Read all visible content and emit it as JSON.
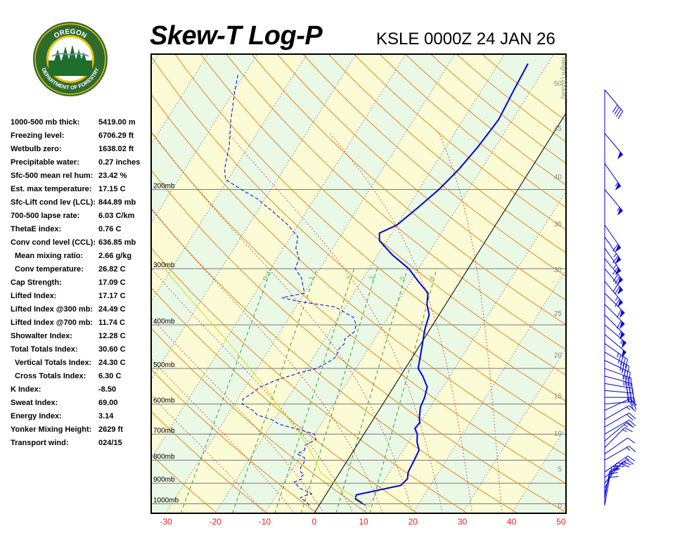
{
  "header": {
    "title": "Skew-T Log-P",
    "station": "KSLE 0000Z 24 JAN 26"
  },
  "logo": {
    "top_text": "OREGON",
    "bottom_text": "DEPARTMENT OF FORESTRY",
    "colors": {
      "ring": "#2f6b2f",
      "gold": "#e8c200",
      "green": "#1f6e2c",
      "sky": "#ffffff"
    }
  },
  "indices": [
    {
      "label": "1000-500 mb thick:",
      "value": "5419.00 m",
      "indent": false
    },
    {
      "label": "Freezing level:",
      "value": "6706.29 ft",
      "indent": false
    },
    {
      "label": "Wetbulb zero:",
      "value": "1638.02 ft",
      "indent": false
    },
    {
      "label": "Precipitable water:",
      "value": "0.27 inches",
      "indent": false
    },
    {
      "label": "Sfc-500 mean rel hum:",
      "value": "23.42 %",
      "indent": false
    },
    {
      "label": "Est. max temperature:",
      "value": "17.15 C",
      "indent": false
    },
    {
      "label": "Sfc-Lift cond lev (LCL):",
      "value": "844.89 mb",
      "indent": false
    },
    {
      "label": "700-500 lapse rate:",
      "value": "6.03 C/km",
      "indent": false
    },
    {
      "label": "ThetaE index:",
      "value": "0.76 C",
      "indent": false
    },
    {
      "label": "Conv cond level (CCL):",
      "value": "636.85 mb",
      "indent": false
    },
    {
      "label": "Mean mixing ratio:",
      "value": "2.66 g/kg",
      "indent": true
    },
    {
      "label": "Conv temperature:",
      "value": "26.82 C",
      "indent": true
    },
    {
      "label": "Cap Strength:",
      "value": "17.09 C",
      "indent": false
    },
    {
      "label": "Lifted Index:",
      "value": "17.17 C",
      "indent": false
    },
    {
      "label": "Lifted Index @300 mb:",
      "value": "24.49 C",
      "indent": false
    },
    {
      "label": "Lifted Index @700 mb:",
      "value": "11.74 C",
      "indent": false
    },
    {
      "label": "Showalter Index:",
      "value": "12.28 C",
      "indent": false
    },
    {
      "label": "Total Totals Index:",
      "value": "30.60 C",
      "indent": false
    },
    {
      "label": "Vertical Totals Index:",
      "value": "24.30 C",
      "indent": true
    },
    {
      "label": "Cross Totals Index:",
      "value": "6.30 C",
      "indent": true
    },
    {
      "label": "K Index:",
      "value": "-8.50",
      "indent": false
    },
    {
      "label": "Sweat Index:",
      "value": "69.00",
      "indent": false
    },
    {
      "label": "Energy Index:",
      "value": "3.14",
      "indent": false
    },
    {
      "label": "Yonker Mixing Height:",
      "value": "2629 ft",
      "indent": false
    },
    {
      "label": "Transport wind:",
      "value": "024/15",
      "indent": false
    }
  ],
  "chart_data": {
    "type": "line",
    "xlim": [
      -33,
      51
    ],
    "plim": [
      1050,
      100
    ],
    "temperature_ticks": [
      "-30",
      "-20",
      "-10",
      "0",
      "10",
      "20",
      "30",
      "40",
      "50"
    ],
    "pressure_levels": [
      {
        "p": 200,
        "label": "200mb"
      },
      {
        "p": 300,
        "label": "300mb"
      },
      {
        "p": 400,
        "label": "400mb"
      },
      {
        "p": 500,
        "label": "500mb"
      },
      {
        "p": 600,
        "label": "600mb"
      },
      {
        "p": 700,
        "label": "700mb"
      },
      {
        "p": 800,
        "label": "800mb"
      },
      {
        "p": 900,
        "label": "900mb"
      },
      {
        "p": 1000,
        "label": "1000mb"
      }
    ],
    "height_axis": {
      "label": "Height (1000ft)",
      "ticks": [
        {
          "p": 1008,
          "label": "0"
        },
        {
          "p": 835,
          "label": "5"
        },
        {
          "p": 697,
          "label": "10"
        },
        {
          "p": 574,
          "label": "15"
        },
        {
          "p": 466,
          "label": "20"
        },
        {
          "p": 376,
          "label": "25"
        },
        {
          "p": 301,
          "label": "30"
        },
        {
          "p": 238,
          "label": "35"
        },
        {
          "p": 187,
          "label": "40"
        },
        {
          "p": 146,
          "label": "45"
        },
        {
          "p": 116,
          "label": "50"
        }
      ]
    },
    "mixing_ratio_labels": [
      "0.4",
      "1",
      "2",
      "3",
      "5",
      "8"
    ],
    "mixing_ratios": [
      0.4,
      1,
      2,
      3,
      5,
      8
    ],
    "dry_adiabat_thetas": [
      250,
      260,
      270,
      280,
      290,
      300,
      310,
      320,
      330,
      340,
      350,
      360,
      370,
      380,
      390,
      400,
      410,
      420,
      430,
      440,
      450,
      460,
      470,
      480
    ],
    "moist_adiabat_starts": [
      -10,
      -4,
      2,
      8,
      14,
      20,
      26,
      32,
      38
    ],
    "series": [
      {
        "role": "temperature",
        "color": "#0000dd",
        "points": [
          [
            1008,
            9.5
          ],
          [
            990,
            7.8
          ],
          [
            975,
            6.5
          ],
          [
            955,
            6.2
          ],
          [
            930,
            10.5
          ],
          [
            910,
            14.0
          ],
          [
            880,
            14.5
          ],
          [
            850,
            13.8
          ],
          [
            800,
            13.5
          ],
          [
            760,
            13.2
          ],
          [
            730,
            11.8
          ],
          [
            700,
            10.8
          ],
          [
            680,
            9.6
          ],
          [
            660,
            9.8
          ],
          [
            640,
            9.0
          ],
          [
            610,
            8.0
          ],
          [
            580,
            7.6
          ],
          [
            550,
            6.8
          ],
          [
            520,
            4.5
          ],
          [
            500,
            2.6
          ],
          [
            470,
            1.5
          ],
          [
            440,
            0.3
          ],
          [
            410,
            -1.0
          ],
          [
            380,
            -2.0
          ],
          [
            360,
            -3.8
          ],
          [
            340,
            -5.0
          ],
          [
            320,
            -8.5
          ],
          [
            300,
            -12.0
          ],
          [
            280,
            -17.0
          ],
          [
            260,
            -21.5
          ],
          [
            250,
            -22.5
          ],
          [
            240,
            -20.0
          ],
          [
            220,
            -18.0
          ],
          [
            200,
            -16.0
          ],
          [
            180,
            -14.5
          ],
          [
            160,
            -13.5
          ],
          [
            140,
            -12.8
          ],
          [
            120,
            -13.5
          ],
          [
            105,
            -14.0
          ]
        ]
      },
      {
        "role": "dewpoint",
        "color": "#0000dd",
        "points": [
          [
            1008,
            -2.0
          ],
          [
            990,
            -3.0
          ],
          [
            970,
            -4.8
          ],
          [
            960,
            -4.2
          ],
          [
            950,
            -3.0
          ],
          [
            940,
            -4.0
          ],
          [
            925,
            -6.0
          ],
          [
            910,
            -7.0
          ],
          [
            895,
            -8.0
          ],
          [
            880,
            -6.8
          ],
          [
            870,
            -7.3
          ],
          [
            860,
            -7.0
          ],
          [
            850,
            -8.0
          ],
          [
            830,
            -8.6
          ],
          [
            810,
            -8.5
          ],
          [
            790,
            -9.0
          ],
          [
            775,
            -11.0
          ],
          [
            760,
            -10.0
          ],
          [
            740,
            -10.5
          ],
          [
            720,
            -9.0
          ],
          [
            700,
            -10.0
          ],
          [
            685,
            -13.5
          ],
          [
            665,
            -18.5
          ],
          [
            650,
            -20.5
          ],
          [
            635,
            -24.0
          ],
          [
            620,
            -25.5
          ],
          [
            600,
            -28.5
          ],
          [
            585,
            -29.0
          ],
          [
            570,
            -28.0
          ],
          [
            550,
            -27.0
          ],
          [
            530,
            -24.5
          ],
          [
            510,
            -20.5
          ],
          [
            500,
            -18.0
          ],
          [
            480,
            -16.0
          ],
          [
            470,
            -15.5
          ],
          [
            455,
            -16.0
          ],
          [
            440,
            -15.5
          ],
          [
            430,
            -16.0
          ],
          [
            415,
            -15.0
          ],
          [
            400,
            -15.5
          ],
          [
            385,
            -17.0
          ],
          [
            375,
            -19.5
          ],
          [
            365,
            -22.0
          ],
          [
            355,
            -30.0
          ],
          [
            348,
            -34.0
          ],
          [
            340,
            -30.0
          ],
          [
            335,
            -30.5
          ],
          [
            325,
            -31.5
          ],
          [
            315,
            -32.5
          ],
          [
            300,
            -35.0
          ],
          [
            285,
            -35.5
          ],
          [
            270,
            -37.5
          ],
          [
            255,
            -38.5
          ],
          [
            240,
            -42.0
          ],
          [
            225,
            -46.5
          ],
          [
            210,
            -51.5
          ],
          [
            200,
            -56.0
          ],
          [
            190,
            -60.5
          ],
          [
            180,
            -62.0
          ],
          [
            160,
            -64.0
          ],
          [
            140,
            -67.0
          ],
          [
            120,
            -70.0
          ],
          [
            110,
            -71.5
          ]
        ]
      },
      {
        "role": "parcel",
        "color": "#dddd00",
        "points": [
          [
            1008,
            9.5
          ],
          [
            975,
            7.0
          ],
          [
            945,
            4.0
          ],
          [
            915,
            1.5
          ],
          [
            880,
            -1.5
          ],
          [
            850,
            -4.0
          ],
          [
            800,
            -6.5
          ],
          [
            750,
            -9.5
          ],
          [
            700,
            -13.0
          ],
          [
            650,
            -17.0
          ],
          [
            600,
            -21.5
          ],
          [
            550,
            -26.0
          ],
          [
            500,
            -31.5
          ],
          [
            450,
            -37.5
          ],
          [
            400,
            -44.5
          ],
          [
            350,
            -52.5
          ],
          [
            300,
            -61.5
          ]
        ]
      }
    ],
    "wind_barbs": [
      {
        "p": 1008,
        "dir": 10,
        "spd": 10
      },
      {
        "p": 975,
        "dir": 10,
        "spd": 20
      },
      {
        "p": 950,
        "dir": 15,
        "spd": 20
      },
      {
        "p": 925,
        "dir": 25,
        "spd": 25
      },
      {
        "p": 900,
        "dir": 40,
        "spd": 20
      },
      {
        "p": 875,
        "dir": 50,
        "spd": 15
      },
      {
        "p": 850,
        "dir": 55,
        "spd": 15
      },
      {
        "p": 800,
        "dir": 60,
        "spd": 15
      },
      {
        "p": 775,
        "dir": 55,
        "spd": 10
      },
      {
        "p": 750,
        "dir": 45,
        "spd": 15
      },
      {
        "p": 725,
        "dir": 50,
        "spd": 15
      },
      {
        "p": 700,
        "dir": 60,
        "spd": 20
      },
      {
        "p": 675,
        "dir": 60,
        "spd": 20
      },
      {
        "p": 650,
        "dir": 60,
        "spd": 15
      },
      {
        "p": 620,
        "dir": 65,
        "spd": 15
      },
      {
        "p": 600,
        "dir": 85,
        "spd": 20
      },
      {
        "p": 580,
        "dir": 90,
        "spd": 25
      },
      {
        "p": 560,
        "dir": 95,
        "spd": 30
      },
      {
        "p": 540,
        "dir": 100,
        "spd": 30
      },
      {
        "p": 520,
        "dir": 105,
        "spd": 35
      },
      {
        "p": 500,
        "dir": 110,
        "spd": 35
      },
      {
        "p": 480,
        "dir": 115,
        "spd": 35
      },
      {
        "p": 460,
        "dir": 120,
        "spd": 40
      },
      {
        "p": 440,
        "dir": 125,
        "spd": 45
      },
      {
        "p": 420,
        "dir": 130,
        "spd": 50
      },
      {
        "p": 400,
        "dir": 130,
        "spd": 55
      },
      {
        "p": 380,
        "dir": 135,
        "spd": 55
      },
      {
        "p": 360,
        "dir": 135,
        "spd": 60
      },
      {
        "p": 340,
        "dir": 135,
        "spd": 60
      },
      {
        "p": 320,
        "dir": 140,
        "spd": 65
      },
      {
        "p": 300,
        "dir": 140,
        "spd": 70
      },
      {
        "p": 285,
        "dir": 140,
        "spd": 70
      },
      {
        "p": 270,
        "dir": 145,
        "spd": 65
      },
      {
        "p": 255,
        "dir": 145,
        "spd": 65
      },
      {
        "p": 240,
        "dir": 145,
        "spd": 60
      },
      {
        "p": 200,
        "dir": 140,
        "spd": 55
      },
      {
        "p": 175,
        "dir": 145,
        "spd": 55
      },
      {
        "p": 150,
        "dir": 140,
        "spd": 50
      },
      {
        "p": 120,
        "dir": 140,
        "spd": 40
      }
    ]
  }
}
